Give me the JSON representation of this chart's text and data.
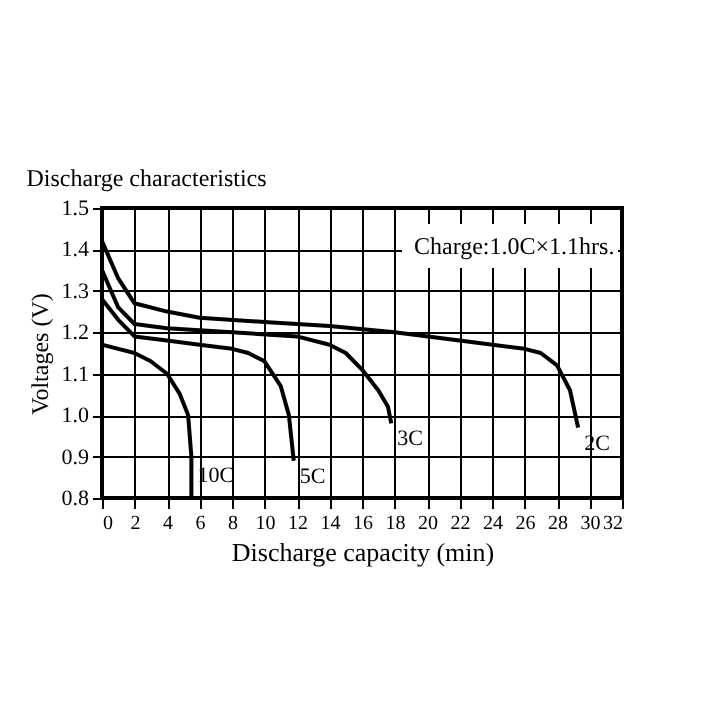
{
  "chart_data": {
    "type": "line",
    "title": "Discharge characteristics",
    "xlabel": "Discharge capacity (min)",
    "ylabel": "Voltages (V)",
    "annotations": [
      "Charge:1.0C×1.1hrs."
    ],
    "xlim": [
      0,
      32
    ],
    "xticks": [
      0,
      2,
      4,
      6,
      8,
      10,
      12,
      14,
      16,
      18,
      20,
      22,
      24,
      26,
      28,
      30,
      32
    ],
    "ylim": [
      0.8,
      1.5
    ],
    "yticks": [
      0.8,
      0.9,
      {
        "value": 1,
        "label": "1.0"
      },
      1.1,
      1.2,
      1.3,
      1.4,
      1.5
    ],
    "grid": true,
    "legend": false,
    "marker": "none",
    "line_style": "solid",
    "series": [
      {
        "name": "10C",
        "color": "#000000",
        "x": [
          0,
          1,
          2,
          3,
          4,
          4.8,
          5.3,
          5.5,
          5.5
        ],
        "values": [
          1.17,
          1.16,
          1.15,
          1.13,
          1.1,
          1.05,
          1.0,
          0.9,
          0.8
        ]
      },
      {
        "name": "5C",
        "color": "#000000",
        "x": [
          0,
          1,
          2,
          4,
          6,
          8,
          9,
          10,
          11,
          11.5,
          11.8
        ],
        "values": [
          1.28,
          1.23,
          1.19,
          1.18,
          1.17,
          1.16,
          1.15,
          1.13,
          1.07,
          1.0,
          0.89
        ]
      },
      {
        "name": "3C",
        "color": "#000000",
        "x": [
          0,
          1,
          2,
          4,
          8,
          12,
          14,
          15,
          16,
          17,
          17.6,
          17.8
        ],
        "values": [
          1.35,
          1.26,
          1.22,
          1.21,
          1.2,
          1.19,
          1.17,
          1.15,
          1.11,
          1.06,
          1.02,
          0.98
        ]
      },
      {
        "name": "2C",
        "color": "#000000",
        "x": [
          0,
          1,
          2,
          4,
          6,
          10,
          14,
          18,
          22,
          26,
          27,
          28,
          28.8,
          29.3
        ],
        "values": [
          1.42,
          1.33,
          1.27,
          1.25,
          1.235,
          1.225,
          1.215,
          1.2,
          1.18,
          1.16,
          1.15,
          1.12,
          1.06,
          0.97
        ]
      }
    ]
  }
}
